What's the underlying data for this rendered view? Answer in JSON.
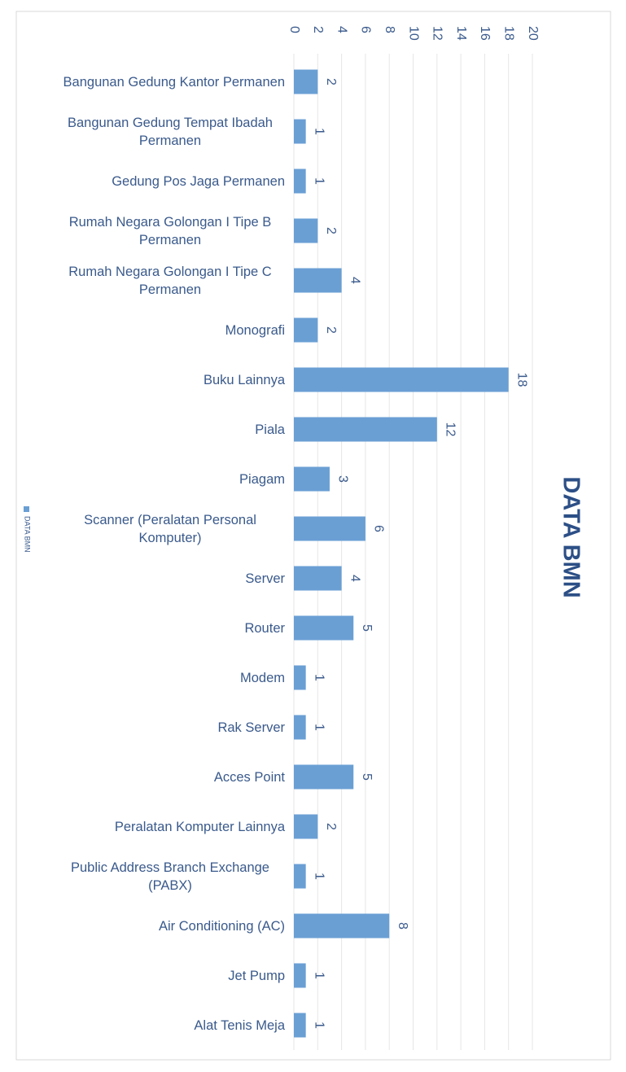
{
  "chart_data": {
    "type": "bar",
    "orientation": "horizontal",
    "title": "DATA BMN",
    "categories": [
      "Bangunan Gedung Kantor Permanen",
      "Bangunan Gedung Tempat Ibadah Permanen",
      "Gedung Pos Jaga Permanen",
      "Rumah Negara Golongan I Tipe B Permanen",
      "Rumah Negara Golongan I Tipe C Permanen",
      "Monografi",
      "Buku Lainnya",
      "Piala",
      "Piagam",
      "Scanner (Peralatan Personal Komputer)",
      "Server",
      "Router",
      "Modem",
      "Rak Server",
      "Acces Point",
      "Peralatan Komputer Lainnya",
      "Public Address Branch Exchange (PABX)",
      "Air Conditioning (AC)",
      "Jet Pump",
      "Alat Tenis Meja"
    ],
    "series": [
      {
        "name": "DATA BMN",
        "color": "#6a9fd4",
        "values": [
          2,
          1,
          1,
          2,
          4,
          2,
          18,
          12,
          3,
          6,
          4,
          5,
          1,
          1,
          5,
          2,
          1,
          8,
          1,
          1
        ]
      }
    ],
    "xlim": [
      0,
      20
    ],
    "xticks": [
      0,
      2,
      4,
      6,
      8,
      10,
      12,
      14,
      16,
      18,
      20
    ],
    "grid": true,
    "legend": "left"
  }
}
